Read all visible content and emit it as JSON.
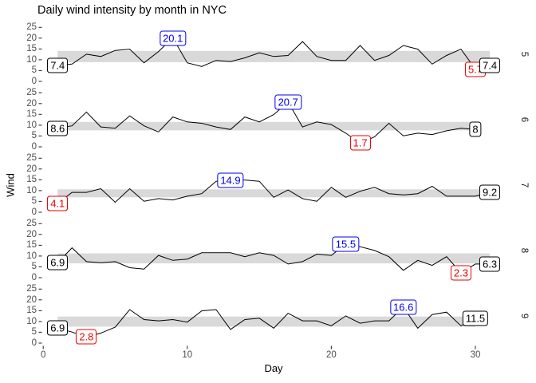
{
  "chart_data": {
    "type": "line",
    "title": "Daily wind intensity by month in NYC",
    "xlabel": "Day",
    "ylabel": "Wind",
    "x_ticks": [
      0,
      10,
      20,
      30
    ],
    "y_ticks": [
      25,
      20,
      15,
      10,
      5,
      0
    ],
    "xlim": [
      0,
      31
    ],
    "ylim_per_facet": [
      0,
      25
    ],
    "grid": "none",
    "legend": "none",
    "colors": {
      "band": "#d9d9d9",
      "line": "#000000",
      "tick": "#333333",
      "tick_text": "#4d4d4d",
      "strip_text": "#1a1a1a"
    },
    "label_colors": {
      "first": "#000000",
      "max": "#0000ee",
      "min": "#ee0000",
      "last": "#000000"
    },
    "facets": [
      {
        "month": "5",
        "band": [
          8.9,
          14.1
        ],
        "values": [
          7.4,
          8.0,
          12.6,
          11.5,
          14.3,
          14.9,
          8.6,
          13.8,
          20.1,
          8.6,
          6.9,
          9.7,
          9.2,
          10.9,
          13.2,
          11.5,
          12.0,
          18.4,
          11.5,
          9.7,
          9.7,
          16.6,
          9.7,
          12.0,
          16.6,
          14.9,
          8.0,
          12.0,
          14.9,
          5.7,
          7.4
        ],
        "annotations": [
          {
            "role": "first",
            "day": 1,
            "value": 7.4,
            "text": "7.4"
          },
          {
            "role": "max",
            "day": 9,
            "value": 20.1,
            "text": "20.1"
          },
          {
            "role": "min",
            "day": 30,
            "value": 5.7,
            "text": "5.7"
          },
          {
            "role": "last",
            "day": 31,
            "value": 7.4,
            "text": "7.4"
          }
        ]
      },
      {
        "month": "6",
        "band": [
          7.6,
          11.5
        ],
        "values": [
          8.6,
          9.7,
          16.1,
          9.2,
          8.6,
          14.3,
          9.7,
          6.9,
          13.8,
          11.5,
          10.9,
          9.2,
          8.0,
          13.8,
          11.5,
          14.9,
          20.7,
          9.2,
          11.5,
          10.3,
          6.3,
          1.7,
          4.6,
          10.9,
          5.1,
          6.3,
          5.7,
          7.4,
          8.6,
          8.0
        ],
        "annotations": [
          {
            "role": "first",
            "day": 1,
            "value": 8.6,
            "text": "8.6"
          },
          {
            "role": "max",
            "day": 17,
            "value": 20.7,
            "text": "20.7"
          },
          {
            "role": "min",
            "day": 22,
            "value": 1.7,
            "text": "1.7"
          },
          {
            "role": "last",
            "day": 30,
            "value": 8.0,
            "text": "8"
          }
        ]
      },
      {
        "month": "7",
        "band": [
          6.9,
          10.6
        ],
        "values": [
          4.1,
          9.2,
          9.2,
          10.9,
          4.6,
          10.9,
          5.1,
          6.3,
          5.7,
          7.4,
          8.6,
          14.3,
          14.9,
          14.9,
          14.3,
          6.9,
          10.3,
          6.3,
          5.1,
          11.5,
          6.9,
          9.7,
          11.5,
          8.6,
          8.0,
          8.6,
          12.0,
          7.4,
          7.4,
          7.4,
          9.2
        ],
        "annotations": [
          {
            "role": "first",
            "day": 1,
            "value": 4.1,
            "text": "4.1"
          },
          {
            "role": "max",
            "day": 13,
            "value": 14.9,
            "text": "14.9"
          },
          {
            "role": "min",
            "day": 1,
            "value": 4.1,
            "text": "4.1"
          },
          {
            "role": "last",
            "day": 31,
            "value": 9.2,
            "text": "9.2"
          }
        ]
      },
      {
        "month": "8",
        "band": [
          6.6,
          11.2
        ],
        "values": [
          6.9,
          13.8,
          7.4,
          6.9,
          7.4,
          4.6,
          4.0,
          10.3,
          8.0,
          8.6,
          11.5,
          11.5,
          11.5,
          9.7,
          11.5,
          10.3,
          6.3,
          7.4,
          10.9,
          10.3,
          15.5,
          14.3,
          12.6,
          9.7,
          3.4,
          8.0,
          5.7,
          9.7,
          2.3,
          6.3,
          6.3
        ],
        "annotations": [
          {
            "role": "first",
            "day": 1,
            "value": 6.9,
            "text": "6.9"
          },
          {
            "role": "max",
            "day": 21,
            "value": 15.5,
            "text": "15.5"
          },
          {
            "role": "min",
            "day": 29,
            "value": 2.3,
            "text": "2.3"
          },
          {
            "role": "last",
            "day": 31,
            "value": 6.3,
            "text": "6.3"
          }
        ]
      },
      {
        "month": "9",
        "band": [
          7.6,
          12.3
        ],
        "values": [
          6.9,
          5.1,
          2.8,
          4.6,
          7.4,
          15.5,
          10.9,
          10.3,
          10.9,
          9.7,
          14.9,
          15.5,
          6.3,
          10.9,
          11.5,
          6.9,
          13.8,
          10.3,
          10.3,
          8.0,
          12.6,
          9.2,
          10.3,
          10.3,
          16.6,
          6.9,
          13.2,
          14.3,
          8.0,
          11.5
        ],
        "annotations": [
          {
            "role": "first",
            "day": 1,
            "value": 6.9,
            "text": "6.9"
          },
          {
            "role": "max",
            "day": 25,
            "value": 16.6,
            "text": "16.6"
          },
          {
            "role": "min",
            "day": 3,
            "value": 2.8,
            "text": "2.8"
          },
          {
            "role": "last",
            "day": 30,
            "value": 11.5,
            "text": "11.5"
          }
        ]
      }
    ]
  }
}
